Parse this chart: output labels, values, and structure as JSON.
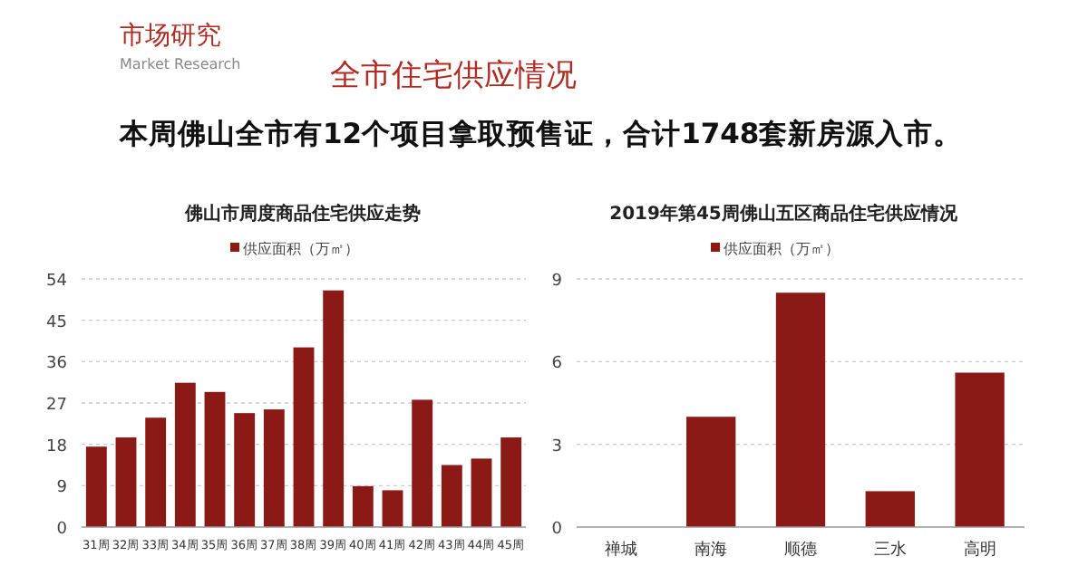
{
  "chart_data": [
    {
      "type": "bar",
      "title": "佛山市周度商品住宅供应走势",
      "annotations": [
        "市场研究",
        "Market Research",
        "全市住宅供应情况",
        "本周佛山全市有12个项目拿取预售证，合计1748套新房源入市。"
      ],
      "categories": [
        "31周",
        "32周",
        "33周",
        "34周",
        "35周",
        "36周",
        "37周",
        "38周",
        "39周",
        "40周",
        "41周",
        "42周",
        "43周",
        "44周",
        "45周"
      ],
      "series": [
        {
          "name": "供应面积（万㎡）",
          "color": "#8b1a17",
          "values": [
            17.5,
            19.5,
            23.8,
            31.4,
            29.4,
            24.8,
            25.6,
            39.1,
            51.5,
            8.9,
            8.0,
            27.7,
            13.5,
            14.9,
            19.5
          ]
        }
      ],
      "ylim": [
        0,
        54
      ],
      "yticks": [
        0,
        9,
        18,
        27,
        36,
        45,
        54
      ],
      "grid": "y",
      "legend": "top"
    },
    {
      "type": "bar",
      "title": "2019年第45周佛山五区商品住宅供应情况",
      "categories": [
        "禅城",
        "南海",
        "顺德",
        "三水",
        "高明"
      ],
      "series": [
        {
          "name": "供应面积（万㎡）",
          "color": "#8b1a17",
          "values": [
            0,
            4.0,
            8.5,
            1.3,
            5.6
          ]
        }
      ],
      "ylim": [
        0,
        9
      ],
      "yticks": [
        0,
        3,
        6,
        9
      ],
      "grid": "y",
      "legend": "top"
    }
  ]
}
